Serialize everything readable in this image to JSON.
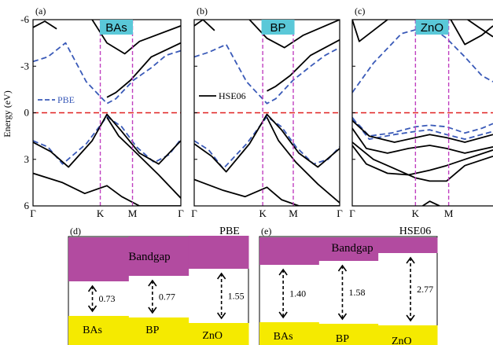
{
  "y_axis_label": "Energy (eV)",
  "chart_data": [
    {
      "type": "line",
      "panel": "(a)",
      "material": "BAs",
      "ylim": [
        -6,
        6
      ],
      "yticks": [
        "6",
        "3",
        "0",
        "-3",
        "-6"
      ],
      "kpath_labels": [
        "Γ",
        "K",
        "M",
        "Γ"
      ],
      "legend": "PBE",
      "fermi_level": 0,
      "series": [
        {
          "style": "PBE-dashed",
          "x": [
            0,
            0.1,
            0.22,
            0.36,
            0.5,
            0.56,
            0.68,
            0.8,
            0.9,
            1
          ],
          "y": [
            3.3,
            3.6,
            4.5,
            2.0,
            0.6,
            0.9,
            2.1,
            2.9,
            3.7,
            4.0
          ]
        },
        {
          "style": "PBE-dashed",
          "x": [
            0,
            0.1,
            0.2,
            0.36,
            0.5,
            0.6,
            0.7,
            0.82,
            0.92,
            1
          ],
          "y": [
            -1.8,
            -2.2,
            -3.3,
            -2.0,
            -0.25,
            -0.9,
            -2.2,
            -3.2,
            -2.7,
            -1.7
          ]
        },
        {
          "style": "HSE-solid",
          "x": [
            0,
            0.12,
            0.24,
            0.4,
            0.5,
            0.6,
            0.72,
            0.85,
            1
          ],
          "y": [
            -1.9,
            -2.5,
            -3.5,
            -1.8,
            -0.1,
            -1.2,
            -2.6,
            -3.3,
            -1.8
          ]
        },
        {
          "style": "HSE-solid",
          "x": [
            0.5,
            0.56,
            0.66,
            0.8,
            1
          ],
          "y": [
            1.0,
            1.3,
            2.1,
            3.6,
            4.5
          ]
        },
        {
          "style": "HSE-solid",
          "x": [
            0.5,
            0.58,
            0.7,
            0.85,
            1
          ],
          "y": [
            -0.3,
            -1.5,
            -2.6,
            -4.0,
            -5.5
          ]
        },
        {
          "style": "HSE-solid",
          "x": [
            0,
            0.2,
            0.35,
            0.5,
            0.6,
            0.72,
            1
          ],
          "y": [
            -3.9,
            -4.5,
            -5.2,
            -4.7,
            -5.4,
            -6,
            -6
          ]
        },
        {
          "style": "HSE-solid",
          "x": [
            0.4,
            0.5,
            0.62,
            0.72,
            1
          ],
          "y": [
            6,
            4.5,
            3.8,
            4.6,
            5.6
          ]
        },
        {
          "style": "HSE-solid",
          "x": [
            0,
            0.08,
            0.16
          ],
          "y": [
            5.5,
            5.9,
            5.4
          ]
        }
      ]
    },
    {
      "type": "line",
      "panel": "(b)",
      "material": "BP",
      "ylim": [
        -6,
        6
      ],
      "kpath_labels": [
        "Γ",
        "K",
        "M",
        "Γ"
      ],
      "legend": "HSE06",
      "fermi_level": 0,
      "series": [
        {
          "style": "PBE-dashed",
          "x": [
            0,
            0.1,
            0.22,
            0.36,
            0.5,
            0.56,
            0.68,
            0.8,
            0.9,
            1
          ],
          "y": [
            3.6,
            3.9,
            4.4,
            2.0,
            0.6,
            0.9,
            2.1,
            3.0,
            3.7,
            4.2
          ]
        },
        {
          "style": "PBE-dashed",
          "x": [
            0,
            0.1,
            0.2,
            0.36,
            0.5,
            0.6,
            0.7,
            0.82,
            0.92,
            1
          ],
          "y": [
            -1.8,
            -2.4,
            -3.6,
            -2.0,
            -0.25,
            -0.9,
            -2.2,
            -3.3,
            -3.0,
            -2.2
          ]
        },
        {
          "style": "HSE-solid",
          "x": [
            0,
            0.12,
            0.22,
            0.38,
            0.5,
            0.6,
            0.72,
            0.85,
            1
          ],
          "y": [
            -2.0,
            -2.8,
            -3.8,
            -2.0,
            -0.1,
            -1.1,
            -2.6,
            -3.5,
            -2.3
          ]
        },
        {
          "style": "HSE-solid",
          "x": [
            0.5,
            0.56,
            0.66,
            0.8,
            1
          ],
          "y": [
            1.4,
            1.7,
            2.4,
            3.7,
            4.7
          ]
        },
        {
          "style": "HSE-solid",
          "x": [
            0.5,
            0.58,
            0.7,
            0.85,
            1
          ],
          "y": [
            -0.3,
            -1.8,
            -3.2,
            -4.6,
            -5.8
          ]
        },
        {
          "style": "HSE-solid",
          "x": [
            0,
            0.2,
            0.35,
            0.5,
            0.6,
            0.72,
            1
          ],
          "y": [
            -4.3,
            -5.0,
            -5.4,
            -4.8,
            -5.6,
            -6,
            -6
          ]
        },
        {
          "style": "HSE-solid",
          "x": [
            0.38,
            0.5,
            0.62,
            0.75,
            1
          ],
          "y": [
            6,
            4.8,
            4.2,
            5.0,
            6
          ]
        },
        {
          "style": "HSE-solid",
          "x": [
            0,
            0.06,
            0.14
          ],
          "y": [
            5.6,
            6.0,
            5.3
          ]
        }
      ]
    },
    {
      "type": "line",
      "panel": "(c)",
      "material": "ZnO",
      "ylim": [
        -6,
        6
      ],
      "kpath_labels": [
        "Γ",
        "K",
        "M"
      ],
      "fermi_level": 0,
      "series": [
        {
          "style": "PBE-dashed",
          "x": [
            0,
            0.15,
            0.35,
            0.55,
            0.67,
            0.8,
            0.92,
            1
          ],
          "y": [
            1.3,
            3.2,
            5.1,
            5.6,
            4.8,
            3.6,
            2.4,
            2.0
          ]
        },
        {
          "style": "PBE-dashed",
          "x": [
            0,
            0.05,
            0.12,
            0.28,
            0.45,
            0.55,
            0.67,
            0.8,
            0.92,
            1
          ],
          "y": [
            -0.4,
            -0.8,
            -1.5,
            -1.3,
            -0.9,
            -0.8,
            -0.9,
            -1.3,
            -1.0,
            -0.7
          ]
        },
        {
          "style": "PBE-dashed",
          "x": [
            0,
            0.12,
            0.3,
            0.45,
            0.55,
            0.67,
            0.8,
            1
          ],
          "y": [
            -0.3,
            -1.7,
            -1.4,
            -1.2,
            -1.1,
            -1.4,
            -1.7,
            -1.2
          ]
        },
        {
          "style": "HSE-solid",
          "x": [
            0,
            0.12,
            0.3,
            0.45,
            0.55,
            0.67,
            0.8,
            1
          ],
          "y": [
            -0.5,
            -1.5,
            -1.9,
            -1.6,
            -1.4,
            -1.6,
            -1.9,
            -1.4
          ]
        },
        {
          "style": "HSE-solid",
          "x": [
            0,
            0.1,
            0.25,
            0.4,
            0.55,
            0.67,
            0.8,
            1
          ],
          "y": [
            -1.0,
            -2.3,
            -2.6,
            -2.3,
            -2.1,
            -2.3,
            -2.6,
            -2.2
          ]
        },
        {
          "style": "HSE-solid",
          "x": [
            0,
            0.15,
            0.3,
            0.45,
            0.55,
            0.67,
            0.8,
            1
          ],
          "y": [
            -1.9,
            -3.0,
            -3.6,
            -4.2,
            -4.4,
            -4.4,
            -3.4,
            -2.8
          ]
        },
        {
          "style": "HSE-solid",
          "x": [
            0,
            0.1,
            0.25,
            0.4,
            0.55,
            0.67,
            0.8,
            1
          ],
          "y": [
            -2.1,
            -3.3,
            -3.9,
            -4.0,
            -3.7,
            -3.4,
            -3.0,
            -2.4
          ]
        },
        {
          "style": "HSE-solid",
          "x": [
            0,
            0.05,
            0.15,
            0.25
          ],
          "y": [
            6,
            4.6,
            5.3,
            6
          ]
        },
        {
          "style": "HSE-solid",
          "x": [
            0.7,
            0.8,
            0.92,
            1
          ],
          "y": [
            6,
            4.4,
            5.0,
            5.6
          ]
        },
        {
          "style": "HSE-solid",
          "x": [
            0.82,
            0.9,
            1
          ],
          "y": [
            6,
            5.5,
            4.9
          ]
        },
        {
          "style": "HSE-solid",
          "x": [
            0.5,
            0.55,
            0.62
          ],
          "y": [
            -6,
            -5.7,
            -6
          ]
        }
      ]
    },
    {
      "type": "bar",
      "panel": "(d)",
      "method": "PBE",
      "band_label": "Bandgap",
      "categories": [
        "BAs",
        "BP",
        "ZnO"
      ],
      "values": [
        0.73,
        0.77,
        1.55
      ]
    },
    {
      "type": "bar",
      "panel": "(e)",
      "method": "HSE06",
      "band_label": "Bandgap",
      "categories": [
        "BAs",
        "BP",
        "ZnO"
      ],
      "values": [
        1.4,
        1.58,
        2.77
      ]
    }
  ],
  "colors": {
    "pbe": "#3a5ab8",
    "hse": "#000000",
    "fermi": "#e02020",
    "kline": "#c040c0",
    "conduction": "#b24ba0",
    "valence": "#f5ea00",
    "mat_box": "#5ac8d8"
  }
}
